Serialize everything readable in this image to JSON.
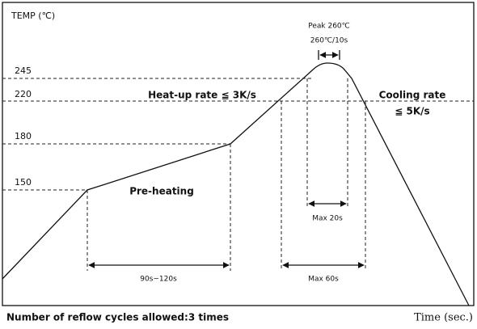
{
  "header": {
    "y_label": "TEMP (℃)",
    "x_label": "Time (sec.)"
  },
  "levels": [
    "245",
    "220",
    "180",
    "150"
  ],
  "peak": {
    "title": "Peak 260℃",
    "hold": "260℃/10s"
  },
  "zones": {
    "heat_up": "Heat-up rate ≦ 3K/s",
    "cooling_title": "Cooling rate",
    "cooling_rate": "≦ 5K/s",
    "preheat": "Pre-heating"
  },
  "durations": {
    "preheat": "90s~120s",
    "above_245": "Max 20s",
    "above_220": "Max 60s"
  },
  "footer": "Number of reflow cycles allowed:3 times"
}
